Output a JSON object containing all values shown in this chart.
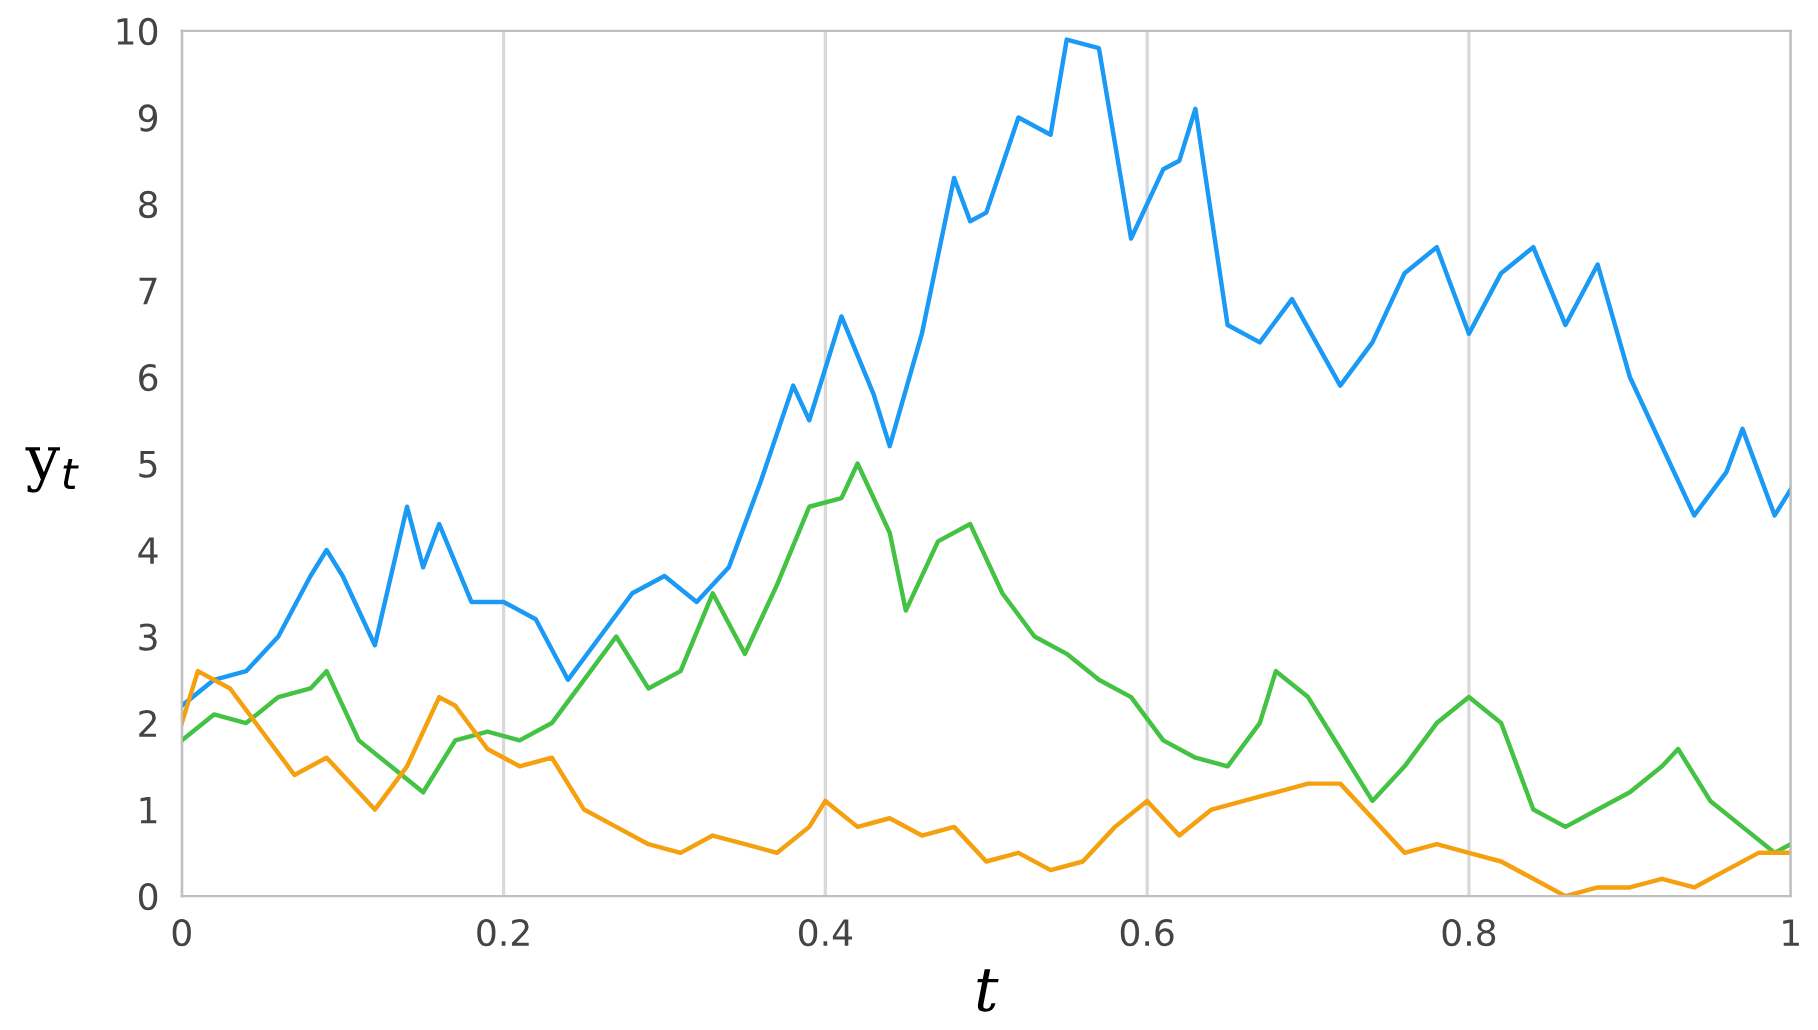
{
  "chart_data": {
    "type": "line",
    "xlabel": "t",
    "ylabel": "y$_{t}$",
    "xlim": [
      0,
      1
    ],
    "ylim": [
      0,
      10
    ],
    "xticks": [
      0,
      0.2,
      0.4,
      0.6,
      0.8,
      1
    ],
    "yticks": [
      0,
      1,
      2,
      3,
      4,
      5,
      6,
      7,
      8,
      9,
      10
    ],
    "grid": "x",
    "legend": false,
    "marker": "none",
    "line_style": "solid",
    "series": [
      {
        "color": "#1a9af5",
        "x": [
          0,
          0.02,
          0.04,
          0.06,
          0.08,
          0.09,
          0.1,
          0.12,
          0.14,
          0.15,
          0.16,
          0.18,
          0.2,
          0.22,
          0.24,
          0.26,
          0.28,
          0.3,
          0.32,
          0.34,
          0.36,
          0.38,
          0.39,
          0.41,
          0.43,
          0.44,
          0.46,
          0.48,
          0.49,
          0.5,
          0.52,
          0.54,
          0.55,
          0.57,
          0.59,
          0.61,
          0.62,
          0.63,
          0.65,
          0.67,
          0.69,
          0.72,
          0.74,
          0.76,
          0.78,
          0.8,
          0.82,
          0.84,
          0.86,
          0.88,
          0.9,
          0.92,
          0.94,
          0.96,
          0.97,
          0.99,
          1.0
        ],
        "values": [
          2.2,
          2.5,
          2.6,
          3.0,
          3.7,
          4.0,
          3.7,
          2.9,
          4.5,
          3.8,
          4.3,
          3.4,
          3.4,
          3.2,
          2.5,
          3.0,
          3.5,
          3.7,
          3.4,
          3.8,
          4.8,
          5.9,
          5.5,
          6.7,
          5.8,
          5.2,
          6.5,
          8.3,
          7.8,
          7.9,
          9.0,
          8.8,
          9.9,
          9.8,
          7.6,
          8.4,
          8.5,
          9.1,
          6.6,
          6.4,
          6.9,
          5.9,
          6.4,
          7.2,
          7.5,
          6.5,
          7.2,
          7.5,
          6.6,
          7.3,
          6.0,
          5.2,
          4.4,
          4.9,
          5.4,
          4.4,
          4.7
        ]
      },
      {
        "color": "#44c244",
        "x": [
          0,
          0.02,
          0.04,
          0.06,
          0.08,
          0.09,
          0.11,
          0.13,
          0.15,
          0.17,
          0.19,
          0.21,
          0.23,
          0.25,
          0.27,
          0.29,
          0.31,
          0.33,
          0.35,
          0.37,
          0.39,
          0.41,
          0.42,
          0.44,
          0.45,
          0.47,
          0.49,
          0.51,
          0.53,
          0.55,
          0.57,
          0.59,
          0.61,
          0.63,
          0.65,
          0.67,
          0.68,
          0.7,
          0.72,
          0.74,
          0.76,
          0.78,
          0.8,
          0.82,
          0.84,
          0.86,
          0.88,
          0.9,
          0.92,
          0.93,
          0.95,
          0.97,
          0.99,
          1.0
        ],
        "values": [
          1.8,
          2.1,
          2.0,
          2.3,
          2.4,
          2.6,
          1.8,
          1.5,
          1.2,
          1.8,
          1.9,
          1.8,
          2.0,
          2.5,
          3.0,
          2.4,
          2.6,
          3.5,
          2.8,
          3.6,
          4.5,
          4.6,
          5.0,
          4.2,
          3.3,
          4.1,
          4.3,
          3.5,
          3.0,
          2.8,
          2.5,
          2.3,
          1.8,
          1.6,
          1.5,
          2.0,
          2.6,
          2.3,
          1.7,
          1.1,
          1.5,
          2.0,
          2.3,
          2.0,
          1.0,
          0.8,
          1.0,
          1.2,
          1.5,
          1.7,
          1.1,
          0.8,
          0.5,
          0.6
        ]
      },
      {
        "color": "#f5a00f",
        "x": [
          0,
          0.01,
          0.03,
          0.05,
          0.07,
          0.09,
          0.11,
          0.12,
          0.14,
          0.16,
          0.17,
          0.19,
          0.21,
          0.23,
          0.25,
          0.27,
          0.29,
          0.31,
          0.33,
          0.35,
          0.37,
          0.39,
          0.4,
          0.42,
          0.44,
          0.46,
          0.48,
          0.5,
          0.52,
          0.54,
          0.56,
          0.58,
          0.6,
          0.62,
          0.64,
          0.66,
          0.68,
          0.7,
          0.72,
          0.74,
          0.76,
          0.78,
          0.8,
          0.82,
          0.84,
          0.86,
          0.88,
          0.9,
          0.92,
          0.94,
          0.96,
          0.98,
          1.0
        ],
        "values": [
          2.0,
          2.6,
          2.4,
          1.9,
          1.4,
          1.6,
          1.2,
          1.0,
          1.5,
          2.3,
          2.2,
          1.7,
          1.5,
          1.6,
          1.0,
          0.8,
          0.6,
          0.5,
          0.7,
          0.6,
          0.5,
          0.8,
          1.1,
          0.8,
          0.9,
          0.7,
          0.8,
          0.4,
          0.5,
          0.3,
          0.4,
          0.8,
          1.1,
          0.7,
          1.0,
          1.1,
          1.2,
          1.3,
          1.3,
          0.9,
          0.5,
          0.6,
          0.5,
          0.4,
          0.2,
          0.0,
          0.1,
          0.1,
          0.2,
          0.1,
          0.3,
          0.5,
          0.5
        ]
      }
    ]
  }
}
